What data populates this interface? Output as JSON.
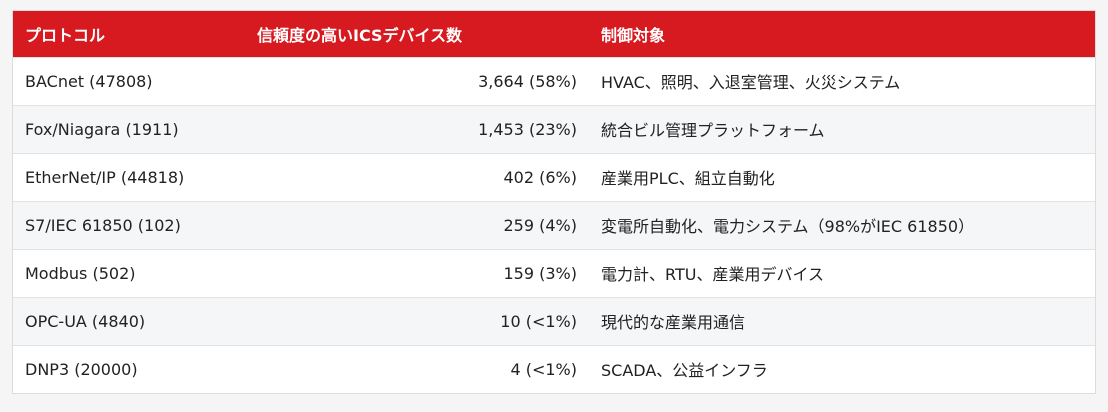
{
  "table": {
    "headers": [
      "プロトコル",
      "信頼度の高いICSデバイス数",
      "制御対象"
    ],
    "rows": [
      {
        "protocol": "BACnet (47808)",
        "devices": "3,664 (58%)",
        "controls": "HVAC、照明、入退室管理、火災システム"
      },
      {
        "protocol": "Fox/Niagara (1911)",
        "devices": "1,453 (23%)",
        "controls": "統合ビル管理プラットフォーム"
      },
      {
        "protocol": "EtherNet/IP (44818)",
        "devices": "402 (6%)",
        "controls": "産業用PLC、組立自動化"
      },
      {
        "protocol": "S7/IEC 61850 (102)",
        "devices": "259 (4%)",
        "controls": "変電所自動化、電力システム（98%がIEC 61850）"
      },
      {
        "protocol": "Modbus (502)",
        "devices": "159 (3%)",
        "controls": "電力計、RTU、産業用デバイス"
      },
      {
        "protocol": "OPC-UA (4840)",
        "devices": "10 (<1%)",
        "controls": "現代的な産業用通信"
      },
      {
        "protocol": "DNP3 (20000)",
        "devices": "4 (<1%)",
        "controls": "SCADA、公益インフラ"
      }
    ]
  },
  "colors": {
    "header_bg": "#d71920",
    "header_text": "#ffffff",
    "row_alt_bg": "#f5f6f8"
  }
}
